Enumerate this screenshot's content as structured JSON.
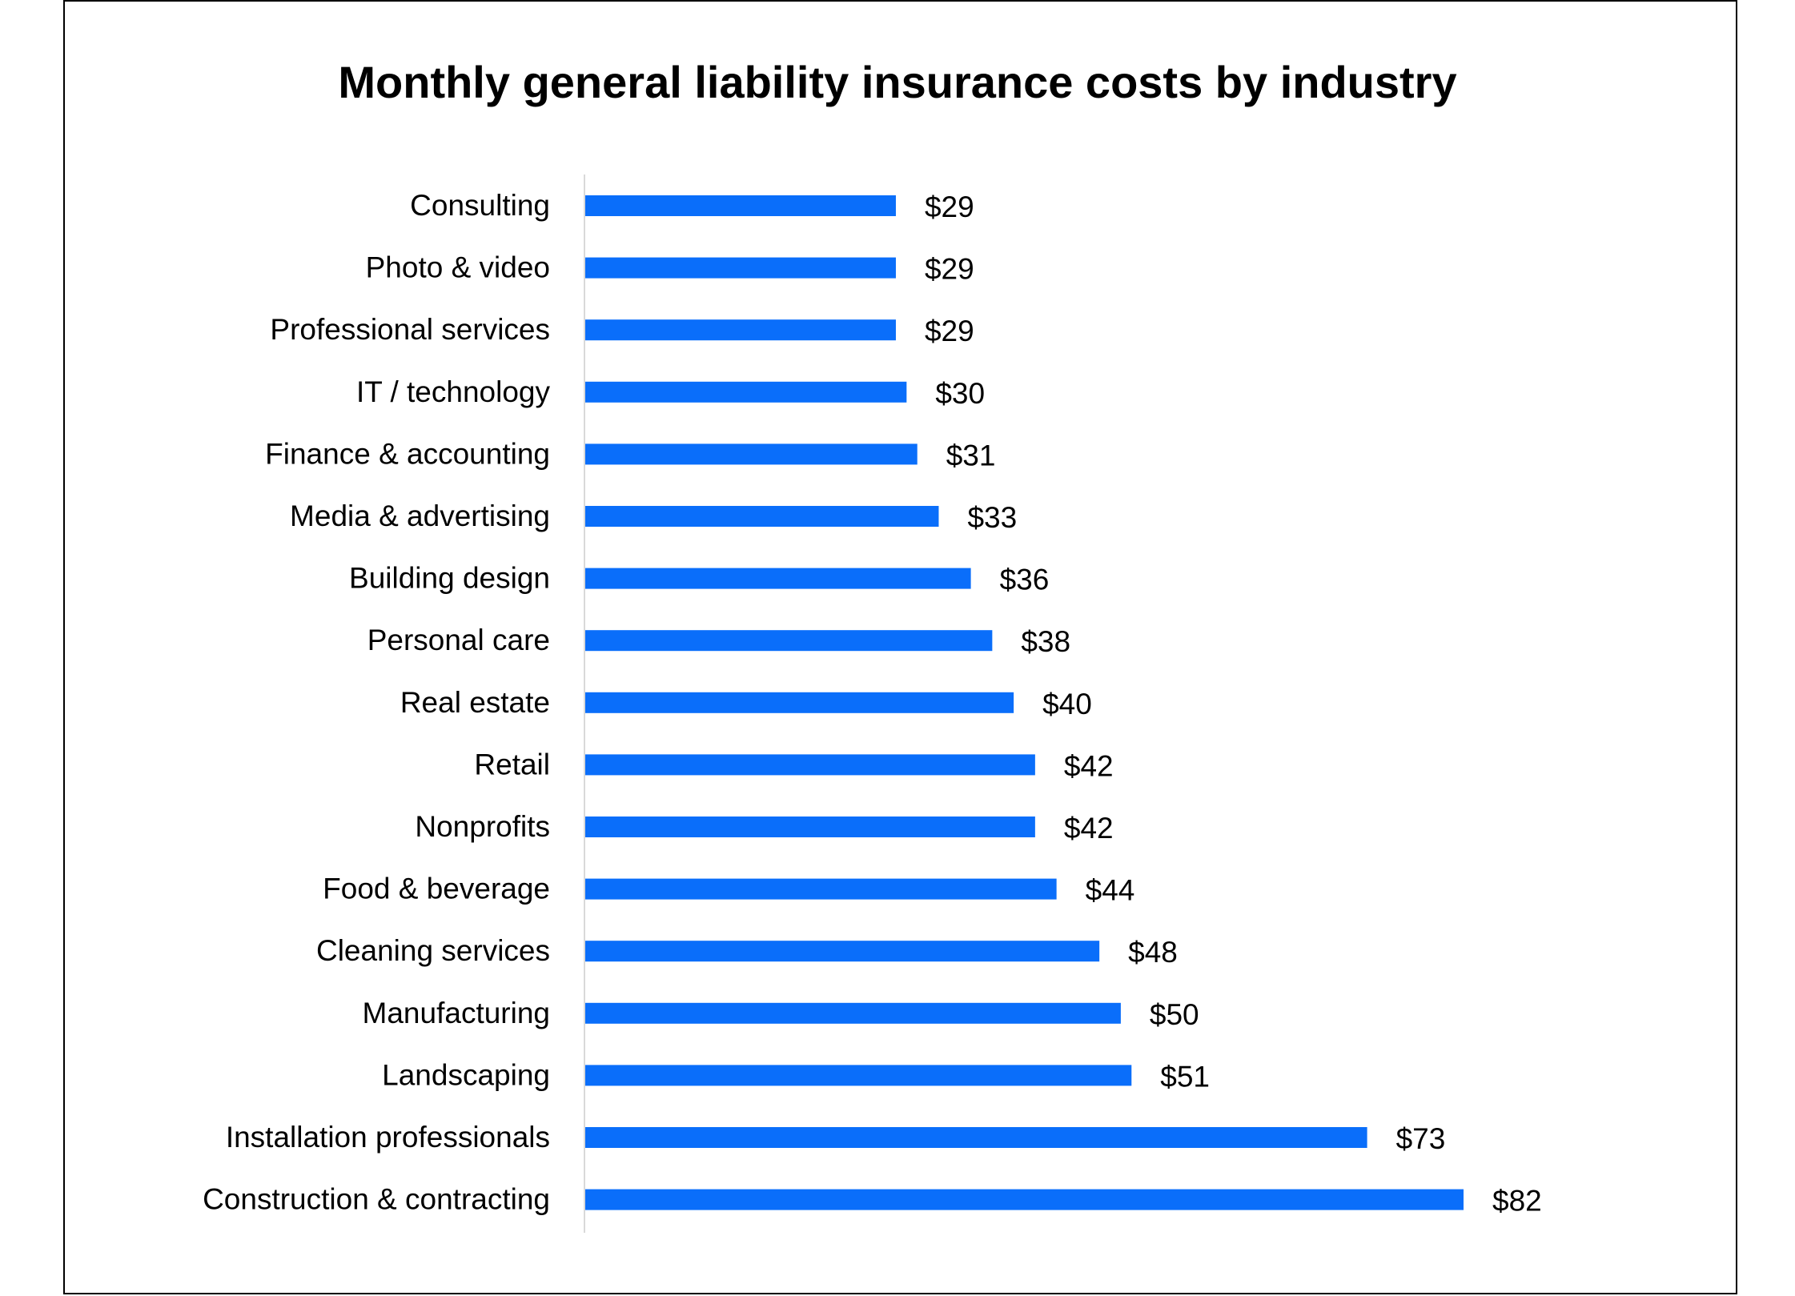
{
  "chart_data": {
    "type": "bar",
    "orientation": "horizontal",
    "title": "Monthly general liability insurance costs by industry",
    "xlabel": "",
    "ylabel": "",
    "categories": [
      "Consulting",
      "Photo & video",
      "Professional services",
      "IT / technology",
      "Finance & accounting",
      "Media & advertising",
      "Building design",
      "Personal care",
      "Real estate",
      "Retail",
      "Nonprofits",
      "Food & beverage",
      "Cleaning services",
      "Manufacturing",
      "Landscaping",
      "Installation professionals",
      "Construction & contracting"
    ],
    "values": [
      29,
      29,
      29,
      30,
      31,
      33,
      36,
      38,
      40,
      42,
      42,
      44,
      48,
      50,
      51,
      73,
      82
    ],
    "data_labels": [
      "$29",
      "$29",
      "$29",
      "$30",
      "$31",
      "$33",
      "$36",
      "$38",
      "$40",
      "$42",
      "$42",
      "$44",
      "$48",
      "$50",
      "$51",
      "$73",
      "$82"
    ],
    "xlim": [
      0,
      82
    ],
    "grid": false,
    "legend": "none",
    "bar_color": "#0A6EFA",
    "axis_color": "#D9D9D9"
  }
}
